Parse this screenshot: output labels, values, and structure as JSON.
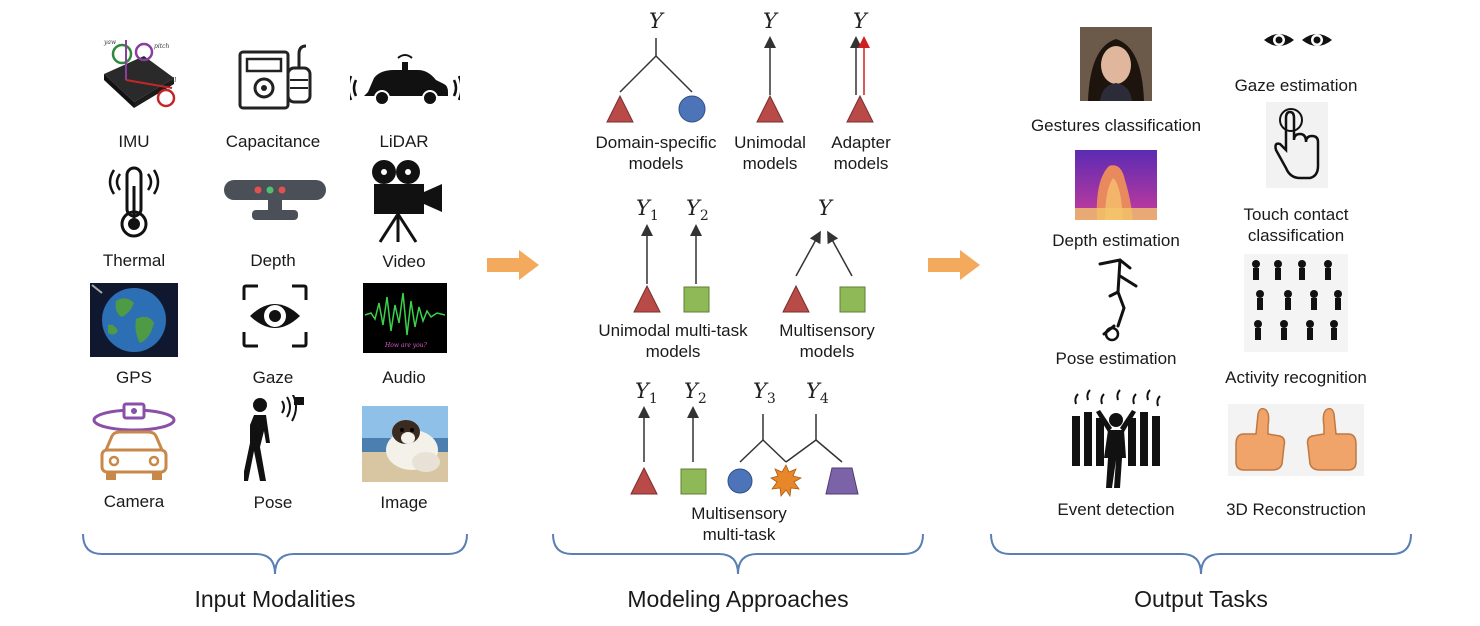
{
  "sections": {
    "input_title": "Input Modalities",
    "modeling_title": "Modeling Approaches",
    "output_title": "Output Tasks"
  },
  "inputs": {
    "imu": "IMU",
    "capacitance": "Capacitance",
    "lidar": "LiDAR",
    "thermal": "Thermal",
    "depth": "Depth",
    "video": "Video",
    "gps": "GPS",
    "gaze": "Gaze",
    "audio": "Audio",
    "camera": "Camera",
    "pose": "Pose",
    "image": "Image",
    "imu_icon_text": {
      "yaw": "yaw",
      "pitch": "pitch",
      "roll": "roll"
    },
    "audio_icon_text": "How are you?"
  },
  "models": {
    "domain_specific": [
      "Domain-specific",
      "models"
    ],
    "unimodal": [
      "Unimodal",
      "models"
    ],
    "adapter": [
      "Adapter",
      "models"
    ],
    "unimodal_multitask": [
      "Unimodal multi-task",
      "models"
    ],
    "multisensory": [
      "Multisensory",
      "models"
    ],
    "multisensory_multitask": [
      "Multisensory",
      "multi-task"
    ],
    "y": "Y",
    "y1": "1",
    "y2": "2",
    "y3": "3",
    "y4": "4"
  },
  "outputs": {
    "gestures": "Gestures classification",
    "gaze": "Gaze estimation",
    "depth": "Depth estimation",
    "touch": [
      "Touch contact",
      "classification"
    ],
    "pose": "Pose estimation",
    "activity": "Activity recognition",
    "event": "Event detection",
    "reconstruction": "3D Reconstruction"
  },
  "colors": {
    "triangle": "#b84a48",
    "circle": "#4d74b8",
    "square": "#8fb857",
    "star": "#e8862a",
    "trapezoid": "#7c63a8",
    "arrow": "#f3aa5c",
    "brace": "#5a7fb5",
    "adapter_arrow": "#d11f1f"
  }
}
